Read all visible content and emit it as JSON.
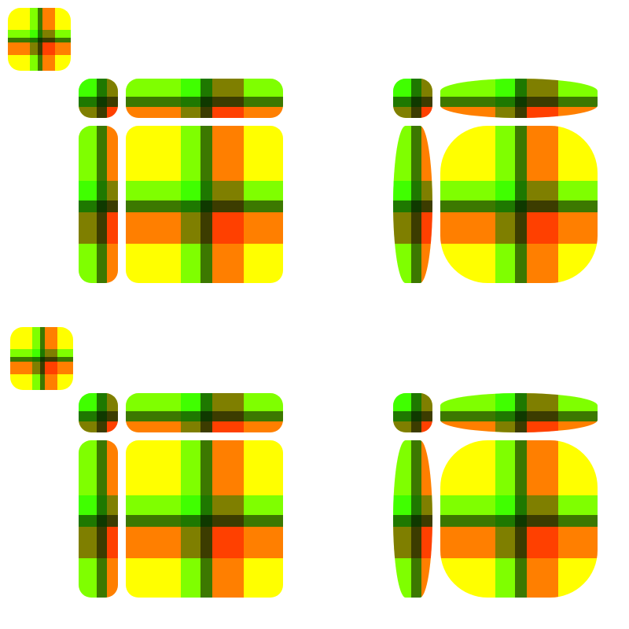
{
  "colors": {
    "base": "#ffff00",
    "green": "#00ff00",
    "pink": "#ff0080",
    "gray": "#787878",
    "green_alpha": 0.5,
    "pink_alpha": 0.5,
    "gray_alpha": 1.0
  },
  "source_tile": {
    "note": ""
  }
}
